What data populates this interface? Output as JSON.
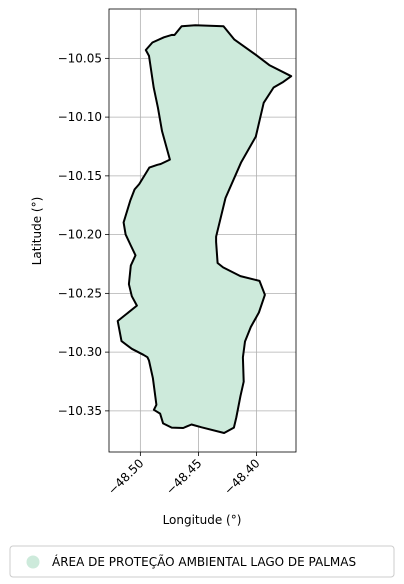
{
  "chart_data": {
    "type": "map",
    "xlabel": "Longitude (°)",
    "ylabel": "Latitude (°)",
    "xlim": [
      -48.527,
      -48.366
    ],
    "ylim": [
      -10.385,
      -10.008
    ],
    "x_ticks": [
      -48.5,
      -48.45,
      -48.4
    ],
    "x_tick_labels": [
      "−48.50",
      "−48.45",
      "−48.40"
    ],
    "y_ticks": [
      -10.05,
      -10.1,
      -10.15,
      -10.2,
      -10.25,
      -10.3,
      -10.35
    ],
    "y_tick_labels": [
      "−10.05",
      "−10.10",
      "−10.15",
      "−10.20",
      "−10.25",
      "−10.30",
      "−10.35"
    ],
    "grid": true,
    "legend_placement": "bottom-center",
    "series": [
      {
        "name": "ÁREA DE PROTEÇÃO AMBIENTAL LAGO DE PALMAS",
        "fill": "#cdeadb",
        "stroke": "#000000",
        "polygon": [
          [
            -48.4645,
            -10.0227
          ],
          [
            -48.4527,
            -10.0218
          ],
          [
            -48.4284,
            -10.0227
          ],
          [
            -48.419,
            -10.034
          ],
          [
            -48.4006,
            -10.047
          ],
          [
            -48.389,
            -10.0557
          ],
          [
            -48.3701,
            -10.0652
          ],
          [
            -48.3776,
            -10.0705
          ],
          [
            -48.3853,
            -10.0748
          ],
          [
            -48.3938,
            -10.0878
          ],
          [
            -48.4006,
            -10.1166
          ],
          [
            -48.4132,
            -10.1384
          ],
          [
            -48.4267,
            -10.1688
          ],
          [
            -48.4348,
            -10.2018
          ],
          [
            -48.4348,
            -10.2062
          ],
          [
            -48.4335,
            -10.2242
          ],
          [
            -48.4288,
            -10.2279
          ],
          [
            -48.4139,
            -10.2353
          ],
          [
            -48.3974,
            -10.2394
          ],
          [
            -48.3928,
            -10.2512
          ],
          [
            -48.3979,
            -10.2663
          ],
          [
            -48.4049,
            -10.2786
          ],
          [
            -48.4099,
            -10.291
          ],
          [
            -48.4117,
            -10.3045
          ],
          [
            -48.411,
            -10.3252
          ],
          [
            -48.4139,
            -10.3376
          ],
          [
            -48.4174,
            -10.3556
          ],
          [
            -48.4195,
            -10.3642
          ],
          [
            -48.4279,
            -10.3688
          ],
          [
            -48.4473,
            -10.364
          ],
          [
            -48.456,
            -10.3616
          ],
          [
            -48.4603,
            -10.3634
          ],
          [
            -48.4631,
            -10.3646
          ],
          [
            -48.473,
            -10.3642
          ],
          [
            -48.4804,
            -10.3607
          ],
          [
            -48.483,
            -10.3523
          ],
          [
            -48.4883,
            -10.3491
          ],
          [
            -48.4862,
            -10.3448
          ],
          [
            -48.4892,
            -10.3222
          ],
          [
            -48.4926,
            -10.3072
          ],
          [
            -48.4939,
            -10.3043
          ],
          [
            -48.4974,
            -10.3023
          ],
          [
            -48.5074,
            -10.2972
          ],
          [
            -48.5162,
            -10.2906
          ],
          [
            -48.5195,
            -10.2735
          ],
          [
            -48.503,
            -10.2604
          ],
          [
            -48.5074,
            -10.2524
          ],
          [
            -48.5099,
            -10.2422
          ],
          [
            -48.5082,
            -10.2264
          ],
          [
            -48.5042,
            -10.2176
          ],
          [
            -48.5082,
            -10.2093
          ],
          [
            -48.5127,
            -10.1998
          ],
          [
            -48.5144,
            -10.1896
          ],
          [
            -48.5087,
            -10.171
          ],
          [
            -48.505,
            -10.1615
          ],
          [
            -48.501,
            -10.157
          ],
          [
            -48.4923,
            -10.143
          ],
          [
            -48.4853,
            -10.1406
          ],
          [
            -48.4825,
            -10.1399
          ],
          [
            -48.4746,
            -10.1362
          ],
          [
            -48.4814,
            -10.1118
          ],
          [
            -48.4849,
            -10.0919
          ],
          [
            -48.4885,
            -10.0749
          ],
          [
            -48.4926,
            -10.0479
          ],
          [
            -48.4953,
            -10.0429
          ],
          [
            -48.4896,
            -10.0365
          ],
          [
            -48.4797,
            -10.0321
          ],
          [
            -48.473,
            -10.03
          ],
          [
            -48.4706,
            -10.0301
          ]
        ]
      }
    ]
  }
}
